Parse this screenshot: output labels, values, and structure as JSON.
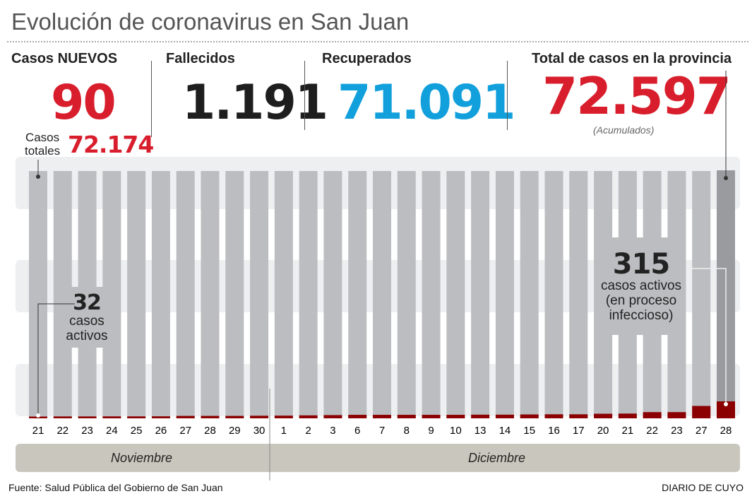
{
  "title": "Evolución de coronavirus en San Juan",
  "stats": {
    "nuevos": {
      "label": "Casos NUEVOS",
      "value": "90",
      "color": "#d81e2c"
    },
    "totales": {
      "label_line1": "Casos",
      "label_line2": "totales",
      "value": "72.174"
    },
    "fallecidos": {
      "label": "Fallecidos",
      "value": "1.191",
      "color": "#1e1e1e"
    },
    "recuperados": {
      "label": "Recuperados",
      "value": "71.091",
      "color": "#12a0dc"
    },
    "total_provincia": {
      "label": "Total de casos en la provincia",
      "value": "72.597",
      "note": "(Acumulados)",
      "color": "#d81e2c"
    }
  },
  "callouts": {
    "first": {
      "value": "32",
      "line1": "casos",
      "line2": "activos"
    },
    "last": {
      "value": "315",
      "line1": "casos activos",
      "line2": "(en proceso",
      "line3": "infeccioso)"
    }
  },
  "chart_data": {
    "type": "bar",
    "categories": [
      "21",
      "22",
      "23",
      "24",
      "25",
      "26",
      "27",
      "28",
      "29",
      "30",
      "1",
      "2",
      "3",
      "6",
      "7",
      "8",
      "9",
      "10",
      "13",
      "14",
      "15",
      "16",
      "17",
      "20",
      "21",
      "22",
      "23",
      "27",
      "28"
    ],
    "months": [
      {
        "label": "Noviembre",
        "count": 10
      },
      {
        "label": "Diciembre",
        "count": 19
      }
    ],
    "series": [
      {
        "name": "casos activos",
        "color": "#8b0000",
        "values": [
          32,
          35,
          35,
          36,
          36,
          37,
          45,
          45,
          45,
          48,
          50,
          55,
          60,
          65,
          65,
          65,
          65,
          65,
          68,
          68,
          72,
          75,
          75,
          85,
          88,
          115,
          115,
          230,
          315
        ]
      }
    ],
    "total_bar_color": "#bcbdc0",
    "highlight_bar_color": "#9a9b9e",
    "grid": false
  },
  "footer": {
    "source": "Fuente: Salud Pública del Gobierno de San Juan",
    "brand": "DIARIO DE CUYO"
  }
}
